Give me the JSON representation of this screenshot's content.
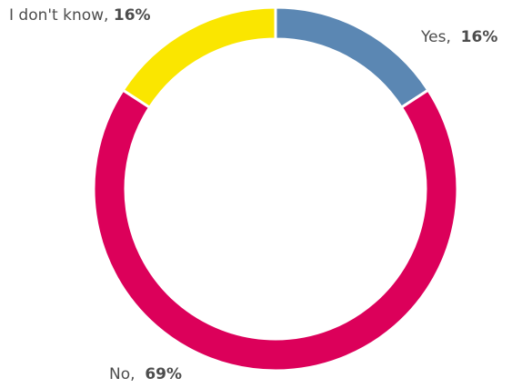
{
  "chart_data": {
    "type": "pie",
    "style": "donut",
    "slices": [
      {
        "label": "Yes",
        "value": 16,
        "display": "16%",
        "color": "#5b87b3"
      },
      {
        "label": "No",
        "value": 69,
        "display": "69%",
        "color": "#dc005a"
      },
      {
        "label": "I don't know",
        "value": 16,
        "display": "16%",
        "color": "#fae600"
      }
    ],
    "start_angle_deg": 0,
    "direction": "clockwise",
    "separator_color": "#ffffff"
  },
  "labels": {
    "yes": {
      "category": "Yes,",
      "value": "16%"
    },
    "no": {
      "category": "No,",
      "value": "69%"
    },
    "idk": {
      "category": "I don't know,",
      "value": "16%"
    }
  }
}
